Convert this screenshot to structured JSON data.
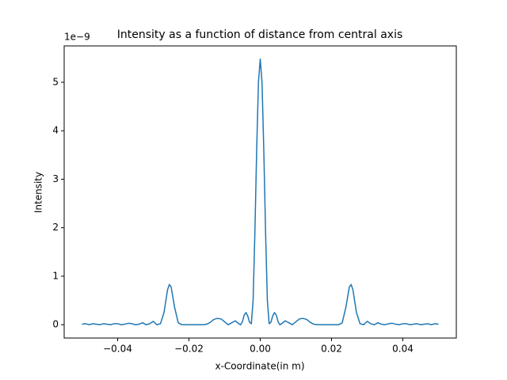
{
  "chart_data": {
    "type": "line",
    "title": "Intensity as a function of distance from central axis",
    "x_label": "x-Coordinate(in m)",
    "y_label": "Intensity",
    "y_offset_label": "1e−9",
    "color": "#1f77b4",
    "x": [
      -0.05,
      -0.049,
      -0.048,
      -0.047,
      -0.046,
      -0.045,
      -0.044,
      -0.043,
      -0.042,
      -0.041,
      -0.04,
      -0.039,
      -0.038,
      -0.037,
      -0.036,
      -0.035,
      -0.034,
      -0.033,
      -0.032,
      -0.031,
      -0.03,
      -0.029,
      -0.028,
      -0.027,
      -0.026,
      -0.0255,
      -0.025,
      -0.024,
      -0.023,
      -0.022,
      -0.02,
      -0.018,
      -0.016,
      -0.015,
      -0.014,
      -0.013,
      -0.012,
      -0.011,
      -0.01,
      -0.009,
      -0.008,
      -0.007,
      -0.006,
      -0.0055,
      -0.005,
      -0.0045,
      -0.004,
      -0.0035,
      -0.003,
      -0.0025,
      -0.002,
      -0.0015,
      -0.001,
      -0.0005,
      0,
      0.0005,
      0.001,
      0.0015,
      0.002,
      0.0025,
      0.003,
      0.0035,
      0.004,
      0.0045,
      0.005,
      0.0055,
      0.006,
      0.007,
      0.008,
      0.009,
      0.01,
      0.011,
      0.012,
      0.013,
      0.014,
      0.015,
      0.016,
      0.018,
      0.02,
      0.022,
      0.023,
      0.024,
      0.025,
      0.0255,
      0.026,
      0.027,
      0.028,
      0.029,
      0.03,
      0.031,
      0.032,
      0.033,
      0.034,
      0.035,
      0.036,
      0.037,
      0.038,
      0.039,
      0.04,
      0.041,
      0.042,
      0.043,
      0.044,
      0.045,
      0.046,
      0.047,
      0.048,
      0.049,
      0.05
    ],
    "values": [
      0.01,
      0.02,
      0,
      0.02,
      0.01,
      0,
      0.02,
      0.01,
      0,
      0.02,
      0.02,
      0,
      0.01,
      0.03,
      0.02,
      0,
      0.01,
      0.04,
      0,
      0.02,
      0.07,
      0,
      0.02,
      0.25,
      0.72,
      0.83,
      0.78,
      0.35,
      0.04,
      0,
      0,
      0,
      0,
      0.01,
      0.05,
      0.11,
      0.13,
      0.12,
      0.06,
      0,
      0.04,
      0.08,
      0.02,
      0,
      0.06,
      0.2,
      0.25,
      0.18,
      0.05,
      0.02,
      0.5,
      1.9,
      3.6,
      5.0,
      5.48,
      5.0,
      3.6,
      1.9,
      0.5,
      0.02,
      0.05,
      0.18,
      0.25,
      0.2,
      0.06,
      0,
      0.02,
      0.08,
      0.04,
      0,
      0.06,
      0.12,
      0.13,
      0.11,
      0.05,
      0.01,
      0,
      0,
      0,
      0,
      0.04,
      0.35,
      0.78,
      0.83,
      0.72,
      0.25,
      0.02,
      0,
      0.07,
      0.02,
      0,
      0.04,
      0.01,
      0,
      0.02,
      0.03,
      0.01,
      0,
      0.02,
      0.02,
      0,
      0.01,
      0.02,
      0,
      0.01,
      0.02,
      0,
      0.02,
      0.01
    ],
    "xlim": [
      -0.055,
      0.055
    ],
    "ylim": [
      -0.275,
      5.75
    ],
    "xticks": [
      {
        "value": -0.04,
        "label": "−0.04"
      },
      {
        "value": -0.02,
        "label": "−0.02"
      },
      {
        "value": 0,
        "label": "0.00"
      },
      0.02,
      0.04
    ],
    "yticks": [
      0,
      1,
      2,
      3,
      4,
      5
    ]
  }
}
